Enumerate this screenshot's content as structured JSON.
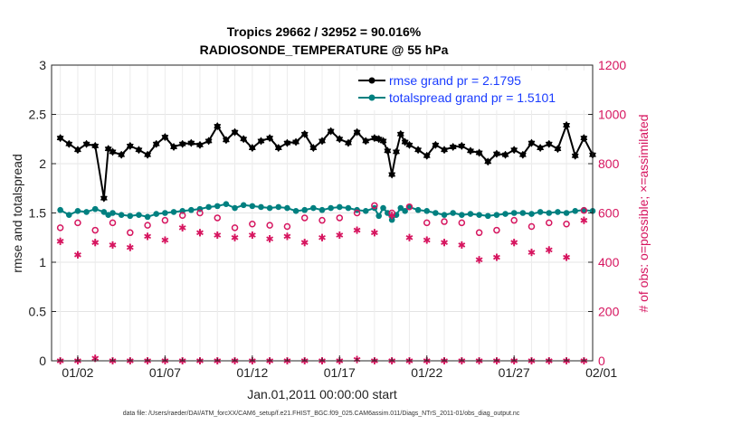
{
  "chart_data": {
    "type": "line",
    "title": "Tropics 29662 / 32952 = 90.016%",
    "subtitle": "RADIOSONDE_TEMPERATURE @ 55 hPa",
    "xlabel": "Jan.01,2011 00:00:00 start",
    "ylabel_left": "rmse and totalspread",
    "ylabel_right": "# of obs: o=possible; ×=assimilated",
    "ylim_left": [
      0,
      3
    ],
    "ylim_right": [
      0,
      1200
    ],
    "yticks_left": [
      "0",
      "0.5",
      "1",
      "1.5",
      "2",
      "2.5",
      "3"
    ],
    "yticks_right": [
      "0",
      "200",
      "400",
      "600",
      "800",
      "1000",
      "1200"
    ],
    "x_range_days": [
      0.5,
      31.5
    ],
    "x_ticks": [
      {
        "day": 2,
        "label": "01/02"
      },
      {
        "day": 7,
        "label": "01/07"
      },
      {
        "day": 12,
        "label": "01/12"
      },
      {
        "day": 17,
        "label": "01/17"
      },
      {
        "day": 22,
        "label": "01/22"
      },
      {
        "day": 27,
        "label": "01/27"
      },
      {
        "day": 32,
        "label": "02/01"
      }
    ],
    "legend": [
      {
        "label": "rmse grand pr = 2.1795",
        "color": "#000000",
        "marker": "hexagram"
      },
      {
        "label": "totalspread grand pr = 1.5101",
        "color": "#008080",
        "marker": "circle"
      }
    ],
    "series": [
      {
        "name": "rmse",
        "axis": "left",
        "color": "#000000",
        "x": [
          1.0,
          1.5,
          2.0,
          2.5,
          3.0,
          3.5,
          3.75,
          4.0,
          4.5,
          5.0,
          5.5,
          6.0,
          6.5,
          7.0,
          7.5,
          8.0,
          8.5,
          9.0,
          9.5,
          10.0,
          10.5,
          11.0,
          11.5,
          12.0,
          12.5,
          13.0,
          13.5,
          14.0,
          14.5,
          15.0,
          15.5,
          16.0,
          16.5,
          17.0,
          17.5,
          18.0,
          18.5,
          19.0,
          19.25,
          19.5,
          19.75,
          20.0,
          20.25,
          20.5,
          20.75,
          21.0,
          21.5,
          22.0,
          22.5,
          23.0,
          23.5,
          24.0,
          24.5,
          25.0,
          25.5,
          26.0,
          26.5,
          27.0,
          27.5,
          28.0,
          28.5,
          29.0,
          29.5,
          30.0,
          30.5,
          31.0,
          31.5
        ],
        "values": [
          2.26,
          2.2,
          2.14,
          2.2,
          2.18,
          1.65,
          2.15,
          2.12,
          2.09,
          2.18,
          2.14,
          2.09,
          2.2,
          2.27,
          2.17,
          2.2,
          2.21,
          2.19,
          2.23,
          2.38,
          2.24,
          2.32,
          2.25,
          2.16,
          2.23,
          2.26,
          2.16,
          2.21,
          2.22,
          2.3,
          2.16,
          2.23,
          2.33,
          2.25,
          2.21,
          2.32,
          2.23,
          2.26,
          2.25,
          2.23,
          2.13,
          1.89,
          2.12,
          2.3,
          2.22,
          2.19,
          2.14,
          2.08,
          2.19,
          2.14,
          2.17,
          2.18,
          2.13,
          2.11,
          2.02,
          2.1,
          2.09,
          2.14,
          2.09,
          2.21,
          2.16,
          2.2,
          2.15,
          2.39,
          2.08,
          2.26,
          2.09
        ]
      },
      {
        "name": "totalspread",
        "axis": "left",
        "color": "#008080",
        "x": [
          1.0,
          1.5,
          2.0,
          2.5,
          3.0,
          3.5,
          3.75,
          4.0,
          4.5,
          5.0,
          5.5,
          6.0,
          6.5,
          7.0,
          7.5,
          8.0,
          8.5,
          9.0,
          9.5,
          10.0,
          10.5,
          11.0,
          11.5,
          12.0,
          12.5,
          13.0,
          13.5,
          14.0,
          14.5,
          15.0,
          15.5,
          16.0,
          16.5,
          17.0,
          17.5,
          18.0,
          18.5,
          19.0,
          19.25,
          19.5,
          19.75,
          20.0,
          20.25,
          20.5,
          20.75,
          21.0,
          21.5,
          22.0,
          22.5,
          23.0,
          23.5,
          24.0,
          24.5,
          25.0,
          25.5,
          26.0,
          26.5,
          27.0,
          27.5,
          28.0,
          28.5,
          29.0,
          29.5,
          30.0,
          30.5,
          31.0,
          31.5
        ],
        "values": [
          1.53,
          1.48,
          1.52,
          1.51,
          1.54,
          1.51,
          1.48,
          1.5,
          1.48,
          1.47,
          1.48,
          1.46,
          1.49,
          1.5,
          1.51,
          1.52,
          1.53,
          1.54,
          1.56,
          1.57,
          1.59,
          1.55,
          1.58,
          1.57,
          1.56,
          1.55,
          1.56,
          1.55,
          1.52,
          1.53,
          1.55,
          1.53,
          1.55,
          1.56,
          1.55,
          1.53,
          1.52,
          1.55,
          1.47,
          1.55,
          1.5,
          1.43,
          1.48,
          1.55,
          1.52,
          1.56,
          1.53,
          1.52,
          1.5,
          1.48,
          1.5,
          1.48,
          1.49,
          1.48,
          1.47,
          1.48,
          1.49,
          1.5,
          1.5,
          1.49,
          1.51,
          1.5,
          1.51,
          1.5,
          1.52,
          1.53,
          1.52
        ]
      },
      {
        "name": "obs possible",
        "axis": "right",
        "color": "#d6155f",
        "marker": "open-circle",
        "x": [
          1,
          2,
          3,
          4,
          5,
          6,
          7,
          8,
          9,
          10,
          11,
          12,
          13,
          14,
          15,
          16,
          17,
          18,
          19,
          20,
          21,
          22,
          23,
          24,
          25,
          26,
          27,
          28,
          29,
          30,
          31
        ],
        "values": [
          540,
          560,
          530,
          560,
          520,
          550,
          570,
          590,
          600,
          580,
          540,
          555,
          550,
          545,
          580,
          570,
          580,
          600,
          630,
          600,
          625,
          560,
          565,
          560,
          520,
          530,
          570,
          545,
          560,
          555,
          610
        ]
      },
      {
        "name": "obs assimilated",
        "axis": "right",
        "color": "#d6155f",
        "marker": "asterisk",
        "x": [
          1,
          2,
          3,
          4,
          5,
          6,
          7,
          8,
          9,
          10,
          11,
          12,
          13,
          14,
          15,
          16,
          17,
          18,
          19,
          20,
          21,
          22,
          23,
          24,
          25,
          26,
          27,
          28,
          29,
          30,
          31
        ],
        "values": [
          485,
          430,
          480,
          470,
          460,
          505,
          490,
          540,
          520,
          510,
          500,
          510,
          495,
          505,
          480,
          500,
          510,
          530,
          520,
          590,
          500,
          490,
          480,
          470,
          410,
          420,
          480,
          440,
          450,
          420,
          570
        ]
      },
      {
        "name": "obs near zero",
        "axis": "right",
        "color": "#d6155f",
        "marker": "asterisk",
        "x": [
          1,
          2,
          3,
          4,
          5,
          6,
          7,
          8,
          9,
          10,
          11,
          12,
          13,
          14,
          15,
          16,
          17,
          18,
          19,
          20,
          21,
          22,
          23,
          24,
          25,
          26,
          27,
          28,
          29,
          30,
          31
        ],
        "values": [
          0,
          0,
          10,
          0,
          0,
          0,
          0,
          0,
          0,
          0,
          0,
          0,
          0,
          0,
          0,
          0,
          0,
          5,
          0,
          0,
          0,
          0,
          0,
          0,
          0,
          0,
          0,
          0,
          0,
          0,
          0
        ]
      }
    ]
  },
  "footnote": "data file: /Users/raeder/DAI/ATM_forcXX/CAM6_setup/f.e21.FHIST_BGC.f09_025.CAM6assim.011/Diags_NTrS_2011-01/obs_diag_output.nc"
}
